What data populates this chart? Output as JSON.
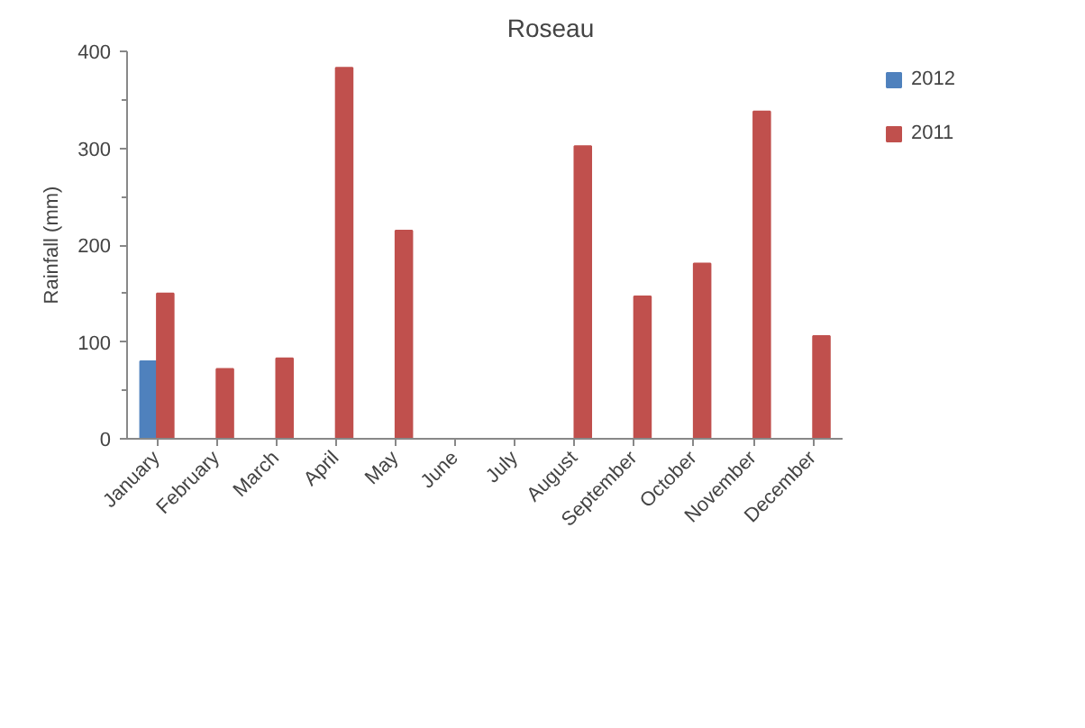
{
  "chart_data": {
    "type": "bar",
    "title": "Roseau",
    "ylabel": "Rainfall (mm)",
    "categories": [
      "January",
      "February",
      "March",
      "April",
      "May",
      "June",
      "July",
      "August",
      "September",
      "October",
      "November",
      "December"
    ],
    "series": [
      {
        "name": "2012",
        "color": "#4f81bd",
        "values": [
          80,
          null,
          null,
          null,
          null,
          null,
          null,
          null,
          null,
          null,
          null,
          null
        ]
      },
      {
        "name": "2011",
        "color": "#c0504d",
        "values": [
          150,
          72,
          83,
          383,
          215,
          null,
          null,
          302,
          147,
          181,
          338,
          106
        ]
      }
    ],
    "ylim": [
      0,
      400
    ],
    "yticks": [
      0,
      100,
      200,
      300,
      400
    ],
    "grid": false,
    "legend": "top right"
  }
}
